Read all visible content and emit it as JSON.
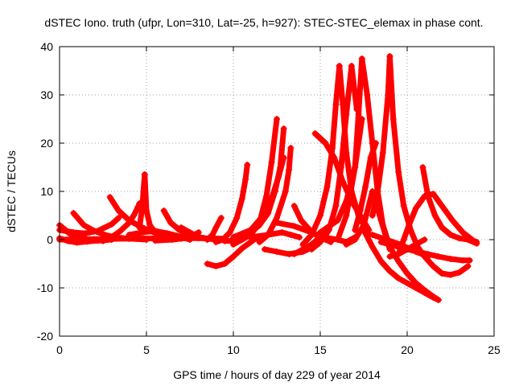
{
  "chart_data": {
    "type": "scatter",
    "title": "dSTEC Iono. truth (ufpr, Lon=310, Lat=-25, h=927): STEC-STEC_elemax in phase cont.",
    "xlabel": "GPS time / hours of day 229 of year 2014",
    "ylabel": "dSTEC  / TECUs",
    "xlim": [
      0,
      25
    ],
    "ylim": [
      -20,
      40
    ],
    "xticks": [
      0,
      5,
      10,
      15,
      20,
      25
    ],
    "yticks": [
      -20,
      -10,
      0,
      10,
      20,
      30,
      40
    ],
    "xtick_labels": [
      "0",
      "5",
      "10",
      "15",
      "20",
      "25"
    ],
    "ytick_labels": [
      "-20",
      "-10",
      "0",
      "10",
      "20",
      "30",
      "40"
    ],
    "grid": true,
    "marker": "plus",
    "color": "#ff0000",
    "series": [
      {
        "x": [
          0.0,
          0.6,
          1.2,
          1.8,
          2.4
        ],
        "y": [
          3.0,
          1.2,
          0.3,
          0.0,
          -0.1
        ]
      },
      {
        "x": [
          0.0,
          0.5,
          1.0,
          1.6,
          2.2,
          3.0
        ],
        "y": [
          0.3,
          -0.3,
          -0.6,
          -0.4,
          -0.2,
          0.0
        ]
      },
      {
        "x": [
          0.8,
          1.4,
          2.0,
          2.6,
          3.2,
          4.0,
          5.0
        ],
        "y": [
          5.5,
          3.0,
          1.8,
          1.0,
          0.5,
          0.2,
          0.0
        ]
      },
      {
        "x": [
          0.0,
          0.8,
          1.5,
          2.2,
          3.0,
          3.4
        ],
        "y": [
          2.0,
          1.5,
          1.3,
          1.8,
          3.2,
          4.5
        ]
      },
      {
        "x": [
          2.9,
          3.4,
          4.0,
          4.6,
          5.2,
          5.8,
          6.5
        ],
        "y": [
          8.8,
          6.0,
          4.0,
          2.8,
          1.8,
          1.0,
          0.5
        ]
      },
      {
        "x": [
          2.5,
          3.0,
          3.5,
          4.0,
          4.3,
          4.6
        ],
        "y": [
          -0.3,
          0.5,
          1.8,
          3.5,
          5.2,
          7.5
        ]
      },
      {
        "x": [
          4.6,
          4.75,
          4.9
        ],
        "y": [
          2.5,
          6.5,
          13.5
        ]
      },
      {
        "x": [
          4.9,
          5.0,
          5.2,
          5.5,
          6.0
        ],
        "y": [
          13.5,
          6.0,
          3.0,
          1.5,
          0.5
        ]
      },
      {
        "x": [
          4.0,
          4.8,
          5.5,
          6.2,
          7.0,
          7.5
        ],
        "y": [
          1.0,
          1.5,
          1.8,
          1.3,
          0.6,
          0.0
        ]
      },
      {
        "x": [
          6.0,
          6.4,
          6.9,
          7.5,
          8.3,
          9.0
        ],
        "y": [
          6.0,
          3.5,
          2.0,
          1.0,
          0.3,
          0.0
        ]
      },
      {
        "x": [
          7.0,
          7.5,
          8.0,
          8.6,
          9.2
        ],
        "y": [
          2.5,
          1.5,
          0.5,
          0.2,
          0.0
        ]
      },
      {
        "x": [
          5.5,
          6.5,
          7.0,
          7.5,
          8.0
        ],
        "y": [
          -0.2,
          0.0,
          0.2,
          0.5,
          1.5
        ]
      },
      {
        "x": [
          0.0,
          2.0,
          4.0,
          6.0,
          8.0,
          9.5
        ],
        "y": [
          0.0,
          0.1,
          0.2,
          0.3,
          0.3,
          0.2
        ]
      },
      {
        "x": [
          8.5,
          8.8,
          9.0,
          9.3
        ],
        "y": [
          0.0,
          1.0,
          2.5,
          4.5
        ]
      },
      {
        "x": [
          9.0,
          9.4,
          9.8,
          10.2,
          10.5,
          10.7,
          10.8
        ],
        "y": [
          -0.5,
          0.0,
          1.5,
          4.5,
          8.5,
          12.5,
          15.5
        ]
      },
      {
        "x": [
          9.5,
          10.0,
          10.5,
          11.0,
          11.5,
          11.9,
          12.2,
          12.5
        ],
        "y": [
          -0.3,
          -0.2,
          0.0,
          1.0,
          3.5,
          9.0,
          16.0,
          25.0
        ]
      },
      {
        "x": [
          8.5,
          9.0,
          9.5,
          10.0,
          10.5,
          11.0,
          11.3
        ],
        "y": [
          -5.0,
          -5.5,
          -5.0,
          -3.5,
          -1.8,
          -0.5,
          0.3
        ]
      },
      {
        "x": [
          10.0,
          10.5,
          11.0,
          11.5,
          12.0,
          12.4,
          12.7,
          12.9
        ],
        "y": [
          -1.0,
          0.0,
          1.5,
          3.0,
          5.5,
          10.0,
          15.0,
          23.0
        ]
      },
      {
        "x": [
          10.0,
          11.0,
          11.6,
          12.2,
          12.6,
          12.9
        ],
        "y": [
          0.5,
          2.0,
          4.5,
          8.5,
          13.0,
          17.0
        ]
      },
      {
        "x": [
          11.5,
          12.0,
          12.5,
          13.0,
          13.2,
          13.3
        ],
        "y": [
          -0.5,
          1.0,
          4.5,
          10.0,
          14.5,
          19.0
        ]
      },
      {
        "x": [
          11.0,
          12.0,
          12.8,
          13.3,
          13.8
        ],
        "y": [
          0.5,
          1.0,
          1.5,
          1.0,
          0.5
        ]
      },
      {
        "x": [
          12.5,
          13.5,
          14.5,
          15.0,
          15.3
        ],
        "y": [
          3.5,
          2.8,
          1.5,
          0.5,
          0.0
        ]
      },
      {
        "x": [
          11.8,
          12.5,
          13.2,
          14.0,
          14.6,
          15.0
        ],
        "y": [
          -2.0,
          -2.5,
          -3.0,
          -2.5,
          -1.5,
          0.0
        ]
      },
      {
        "x": [
          13.5,
          13.9,
          14.4,
          15.0,
          15.6
        ],
        "y": [
          7.0,
          4.0,
          2.0,
          0.5,
          -0.5
        ]
      },
      {
        "x": [
          13.5,
          14.0,
          14.5,
          15.0,
          15.5,
          16.0,
          16.5,
          17.0
        ],
        "y": [
          -3.0,
          -2.0,
          -1.0,
          0.5,
          0.3,
          0.0,
          -0.5,
          0.5
        ]
      },
      {
        "x": [
          14.0,
          14.5,
          15.0,
          15.4,
          15.7,
          15.9,
          16.1
        ],
        "y": [
          -1.0,
          1.0,
          5.0,
          11.0,
          19.0,
          28.0,
          36.0
        ]
      },
      {
        "x": [
          16.1,
          16.3,
          16.5,
          16.8,
          17.2,
          17.8
        ],
        "y": [
          36.0,
          28.0,
          18.0,
          10.0,
          5.0,
          1.0
        ]
      },
      {
        "x": [
          14.5,
          15.0,
          15.5,
          15.9,
          16.2,
          16.5,
          16.8,
          17.1
        ],
        "y": [
          -2.0,
          -0.5,
          2.0,
          7.0,
          15.0,
          26.0,
          36.0,
          27.0
        ]
      },
      {
        "x": [
          14.7,
          15.3,
          15.8,
          16.3,
          16.8,
          17.3,
          17.8
        ],
        "y": [
          22.0,
          20.0,
          17.0,
          12.0,
          8.0,
          5.0,
          2.0
        ]
      },
      {
        "x": [
          15.0,
          16.0,
          16.5,
          17.0,
          17.4
        ],
        "y": [
          1.5,
          4.0,
          8.0,
          15.0,
          25.0
        ]
      },
      {
        "x": [
          16.5,
          17.0,
          17.5,
          18.0,
          18.5,
          19.0
        ],
        "y": [
          -1.0,
          0.0,
          3.0,
          10.0,
          4.0,
          -2.0
        ]
      },
      {
        "x": [
          16.0,
          16.5,
          17.0,
          17.2,
          17.4
        ],
        "y": [
          0.0,
          5.0,
          15.0,
          26.0,
          37.5
        ]
      },
      {
        "x": [
          17.4,
          17.7,
          18.0,
          18.3,
          18.6,
          19.0,
          19.5,
          20.0,
          20.5,
          21.0,
          21.5,
          21.8
        ],
        "y": [
          37.5,
          30.0,
          20.0,
          10.0,
          3.0,
          -1.5,
          -4.5,
          -7.0,
          -9.0,
          -10.5,
          -11.8,
          -12.5
        ]
      },
      {
        "x": [
          17.0,
          17.3,
          17.6,
          17.9,
          18.2
        ],
        "y": [
          2.0,
          6.0,
          11.0,
          17.0,
          20.0
        ]
      },
      {
        "x": [
          18.0,
          18.3,
          18.6,
          18.9,
          19.0
        ],
        "y": [
          5.0,
          10.0,
          18.0,
          30.0,
          38.0
        ]
      },
      {
        "x": [
          19.0,
          19.2,
          19.5,
          19.8,
          20.2,
          20.6,
          21.0,
          21.5,
          22.0,
          22.5,
          23.0,
          23.5
        ],
        "y": [
          38.0,
          25.0,
          14.0,
          7.0,
          2.0,
          -1.5,
          -3.5,
          -5.5,
          -7.0,
          -7.3,
          -6.8,
          -5.5
        ]
      },
      {
        "x": [
          17.5,
          18.0,
          18.5,
          19.0,
          19.5,
          20.0,
          20.5,
          21.0,
          21.5,
          21.8
        ],
        "y": [
          2.0,
          -1.5,
          -4.5,
          -6.5,
          -8.0,
          -9.0,
          -10.0,
          -11.0,
          -12.0,
          -12.5
        ]
      },
      {
        "x": [
          18.5,
          19.0,
          19.5,
          20.0,
          20.6,
          21.2,
          21.8,
          22.5,
          23.2,
          23.6
        ],
        "y": [
          -0.5,
          -1.0,
          -1.5,
          -2.0,
          -2.5,
          -3.0,
          -3.5,
          -4.0,
          -4.3,
          -4.3
        ]
      },
      {
        "x": [
          19.5,
          19.8,
          20.1,
          20.5,
          21.0,
          21.5,
          22.0,
          22.6,
          23.2,
          23.8,
          24.0
        ],
        "y": [
          -3.0,
          0.0,
          3.0,
          6.5,
          9.0,
          9.5,
          7.0,
          4.0,
          1.5,
          -0.2,
          -0.5
        ]
      },
      {
        "x": [
          20.9,
          21.2,
          21.6,
          22.0,
          22.5,
          23.0,
          23.5,
          24.0
        ],
        "y": [
          15.0,
          9.0,
          5.0,
          2.5,
          1.0,
          0.3,
          0.0,
          -0.8
        ]
      },
      {
        "x": [
          19.0,
          19.5,
          20.0,
          20.5,
          21.0
        ],
        "y": [
          -3.5,
          -3.0,
          -2.0,
          -1.0,
          0.0
        ]
      },
      {
        "x": [
          18.0,
          18.8,
          19.6,
          20.5,
          21.2
        ],
        "y": [
          1.0,
          0.0,
          -1.0,
          -2.5,
          -3.5
        ]
      }
    ]
  }
}
